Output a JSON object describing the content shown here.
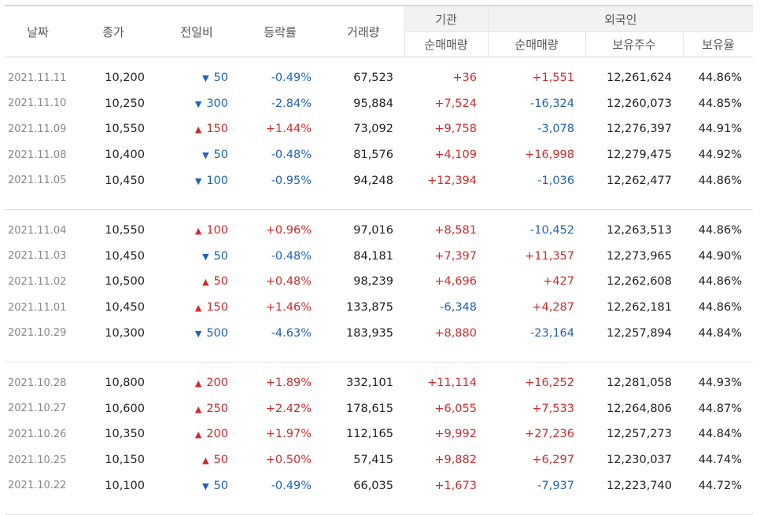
{
  "header": {
    "date": "날짜",
    "close": "종가",
    "change": "전일비",
    "rate": "등락률",
    "volume": "거래량",
    "inst_group": "기관",
    "foreign_group": "외국인",
    "inst_net": "순매매량",
    "foreign_net": "순매매량",
    "holdings": "보유주수",
    "ratio": "보유율"
  },
  "colors": {
    "up": "#d12b2b",
    "down": "#1f63b8"
  },
  "groups": [
    [
      {
        "date": "2021.11.11",
        "close": "10,200",
        "dir": "down",
        "change": "50",
        "rate": "-0.49%",
        "volume": "67,523",
        "inst": "+36",
        "foreign": "+1,551",
        "holdings": "12,261,624",
        "ratio": "44.86%"
      },
      {
        "date": "2021.11.10",
        "close": "10,250",
        "dir": "down",
        "change": "300",
        "rate": "-2.84%",
        "volume": "95,884",
        "inst": "+7,524",
        "foreign": "-16,324",
        "holdings": "12,260,073",
        "ratio": "44.85%"
      },
      {
        "date": "2021.11.09",
        "close": "10,550",
        "dir": "up",
        "change": "150",
        "rate": "+1.44%",
        "volume": "73,092",
        "inst": "+9,758",
        "foreign": "-3,078",
        "holdings": "12,276,397",
        "ratio": "44.91%"
      },
      {
        "date": "2021.11.08",
        "close": "10,400",
        "dir": "down",
        "change": "50",
        "rate": "-0.48%",
        "volume": "81,576",
        "inst": "+4,109",
        "foreign": "+16,998",
        "holdings": "12,279,475",
        "ratio": "44.92%"
      },
      {
        "date": "2021.11.05",
        "close": "10,450",
        "dir": "down",
        "change": "100",
        "rate": "-0.95%",
        "volume": "94,248",
        "inst": "+12,394",
        "foreign": "-1,036",
        "holdings": "12,262,477",
        "ratio": "44.86%"
      }
    ],
    [
      {
        "date": "2021.11.04",
        "close": "10,550",
        "dir": "up",
        "change": "100",
        "rate": "+0.96%",
        "volume": "97,016",
        "inst": "+8,581",
        "foreign": "-10,452",
        "holdings": "12,263,513",
        "ratio": "44.86%"
      },
      {
        "date": "2021.11.03",
        "close": "10,450",
        "dir": "down",
        "change": "50",
        "rate": "-0.48%",
        "volume": "84,181",
        "inst": "+7,397",
        "foreign": "+11,357",
        "holdings": "12,273,965",
        "ratio": "44.90%"
      },
      {
        "date": "2021.11.02",
        "close": "10,500",
        "dir": "up",
        "change": "50",
        "rate": "+0.48%",
        "volume": "98,239",
        "inst": "+4,696",
        "foreign": "+427",
        "holdings": "12,262,608",
        "ratio": "44.86%"
      },
      {
        "date": "2021.11.01",
        "close": "10,450",
        "dir": "up",
        "change": "150",
        "rate": "+1.46%",
        "volume": "133,875",
        "inst": "-6,348",
        "foreign": "+4,287",
        "holdings": "12,262,181",
        "ratio": "44.86%"
      },
      {
        "date": "2021.10.29",
        "close": "10,300",
        "dir": "down",
        "change": "500",
        "rate": "-4.63%",
        "volume": "183,935",
        "inst": "+8,880",
        "foreign": "-23,164",
        "holdings": "12,257,894",
        "ratio": "44.84%"
      }
    ],
    [
      {
        "date": "2021.10.28",
        "close": "10,800",
        "dir": "up",
        "change": "200",
        "rate": "+1.89%",
        "volume": "332,101",
        "inst": "+11,114",
        "foreign": "+16,252",
        "holdings": "12,281,058",
        "ratio": "44.93%"
      },
      {
        "date": "2021.10.27",
        "close": "10,600",
        "dir": "up",
        "change": "250",
        "rate": "+2.42%",
        "volume": "178,615",
        "inst": "+6,055",
        "foreign": "+7,533",
        "holdings": "12,264,806",
        "ratio": "44.87%"
      },
      {
        "date": "2021.10.26",
        "close": "10,350",
        "dir": "up",
        "change": "200",
        "rate": "+1.97%",
        "volume": "112,165",
        "inst": "+9,992",
        "foreign": "+27,236",
        "holdings": "12,257,273",
        "ratio": "44.84%"
      },
      {
        "date": "2021.10.25",
        "close": "10,150",
        "dir": "up",
        "change": "50",
        "rate": "+0.50%",
        "volume": "57,415",
        "inst": "+9,882",
        "foreign": "+6,297",
        "holdings": "12,230,037",
        "ratio": "44.74%"
      },
      {
        "date": "2021.10.22",
        "close": "10,100",
        "dir": "down",
        "change": "50",
        "rate": "-0.49%",
        "volume": "66,035",
        "inst": "+1,673",
        "foreign": "-7,937",
        "holdings": "12,223,740",
        "ratio": "44.72%"
      }
    ]
  ]
}
